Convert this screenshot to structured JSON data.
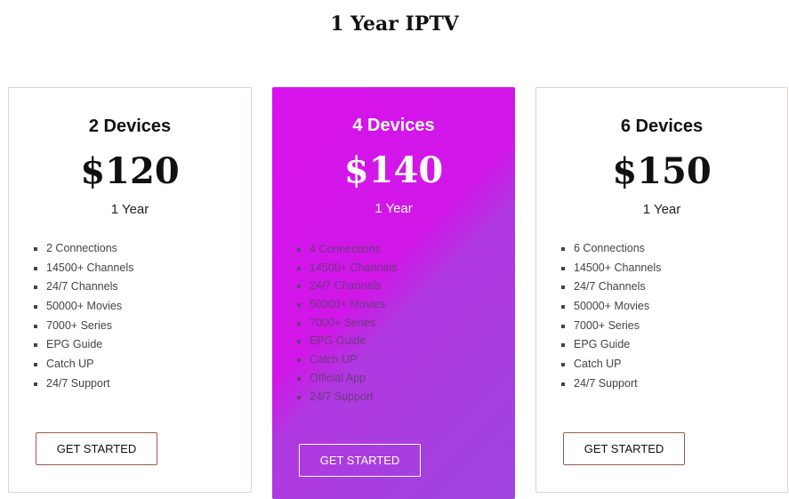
{
  "title": "1 Year IPTV",
  "plans": [
    {
      "name": "2 Devices",
      "price": "$120",
      "period": "1 Year",
      "features": [
        "2 Connections",
        "14500+ Channels",
        "24/7 Channels",
        "50000+ Movies",
        "7000+ Series",
        "EPG Guide",
        "Catch UP",
        "24/7 Support"
      ],
      "button": "GET STARTED"
    },
    {
      "name": "4 Devices",
      "price": "$140",
      "period": "1 Year",
      "features": [
        "4 Connections",
        "14500+ Channels",
        "24/7 Channels",
        "50000+ Movies",
        "7000+ Series",
        "EPG Guide",
        "Catch UP",
        "Official App",
        "24/7 Support"
      ],
      "button": "GET STARTED",
      "highlighted": true,
      "accent": "#d813ec"
    },
    {
      "name": "6 Devices",
      "price": "$150",
      "period": "1 Year",
      "features": [
        "6 Connections",
        "14500+ Channels",
        "24/7 Channels",
        "50000+ Movies",
        "7000+ Series",
        "EPG Guide",
        "Catch UP",
        "24/7 Support"
      ],
      "button": "GET STARTED"
    }
  ]
}
